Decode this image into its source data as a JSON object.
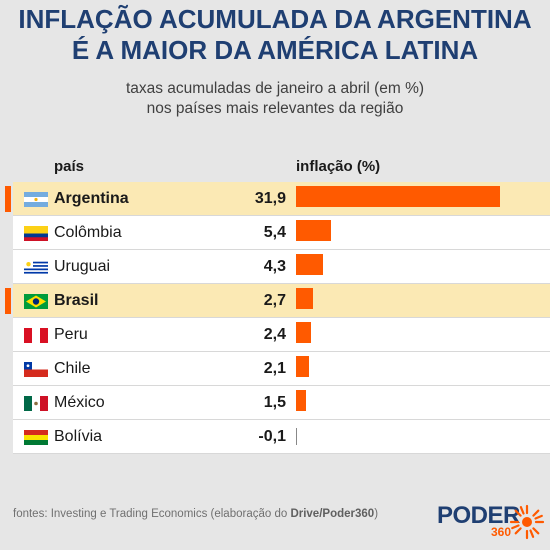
{
  "title_line1": "INFLAÇÃO ACUMULADA DA ARGENTINA",
  "title_line2": "É A MAIOR DA AMÉRICA LATINA",
  "subtitle_line1": "taxas acumuladas de janeiro a abril (em %)",
  "subtitle_line2": "nos países mais relevantes da região",
  "header_country": "país",
  "header_value": "inflação (%)",
  "colors": {
    "accent": "#ff5a00",
    "title": "#1f3f72",
    "highlight_row": "#fbe9b4"
  },
  "rows": [
    {
      "country": "Argentina",
      "value_label": "31,9",
      "highlight": true,
      "flag": "argentina-flag-icon"
    },
    {
      "country": "Colômbia",
      "value_label": "5,4",
      "highlight": false,
      "flag": "colombia-flag-icon"
    },
    {
      "country": "Uruguai",
      "value_label": "4,3",
      "highlight": false,
      "flag": "uruguay-flag-icon"
    },
    {
      "country": "Brasil",
      "value_label": "2,7",
      "highlight": true,
      "flag": "brazil-flag-icon"
    },
    {
      "country": "Peru",
      "value_label": "2,4",
      "highlight": false,
      "flag": "peru-flag-icon"
    },
    {
      "country": "Chile",
      "value_label": "2,1",
      "highlight": false,
      "flag": "chile-flag-icon"
    },
    {
      "country": "México",
      "value_label": "1,5",
      "highlight": false,
      "flag": "mexico-flag-icon"
    },
    {
      "country": "Bolívia",
      "value_label": "-0,1",
      "highlight": false,
      "flag": "bolivia-flag-icon"
    }
  ],
  "chart_data": {
    "type": "bar",
    "orientation": "horizontal",
    "categories": [
      "Argentina",
      "Colômbia",
      "Uruguai",
      "Brasil",
      "Peru",
      "Chile",
      "México",
      "Bolívia"
    ],
    "values": [
      31.9,
      5.4,
      4.3,
      2.7,
      2.4,
      2.1,
      1.5,
      -0.1
    ],
    "title": "INFLAÇÃO ACUMULADA DA ARGENTINA É A MAIOR DA AMÉRICA LATINA",
    "subtitle": "taxas acumuladas de janeiro a abril (em %) nos países mais relevantes da região",
    "xlabel": "inflação (%)",
    "ylabel": "país",
    "grid": false
  },
  "footer": {
    "prefix": "fontes: Investing e Trading Economics (elaboração do ",
    "bold": "Drive/Poder360",
    "suffix": ")"
  },
  "logo": {
    "text": "PODER",
    "number": "360"
  }
}
